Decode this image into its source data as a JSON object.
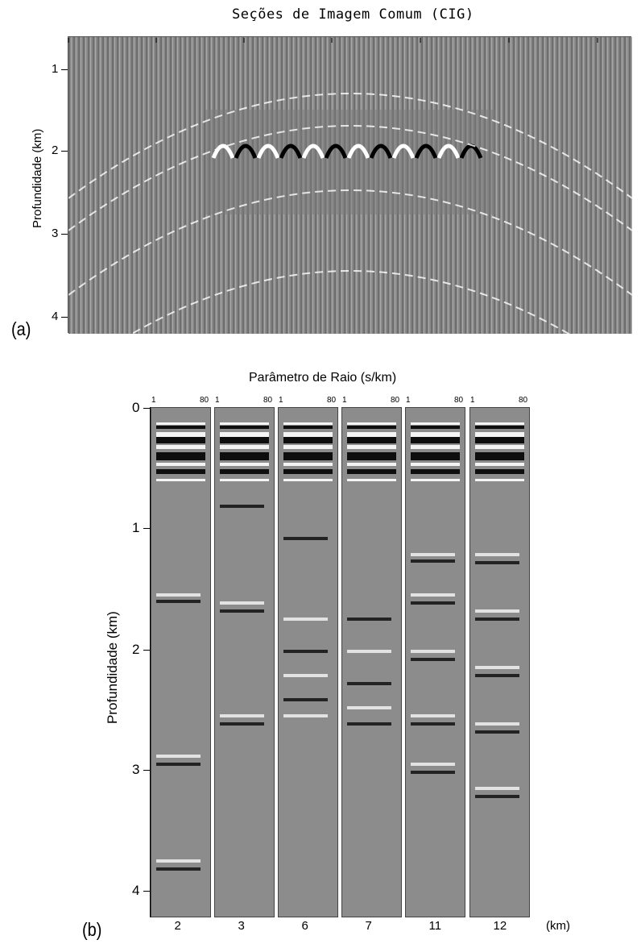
{
  "panel_a": {
    "title": "Seções de Imagem Comum (CIG)",
    "ylabel": "Profundidade (km)",
    "yticks": [
      "1",
      "2",
      "3",
      "4"
    ],
    "caption": "(a)"
  },
  "panel_b": {
    "title": "Parâmetro de Raio (s/km)",
    "ylabel": "Profundidade (km)",
    "yticks": [
      "0",
      "1",
      "2",
      "3",
      "4"
    ],
    "caption": "(b)",
    "x_unit": "(km)",
    "panels": [
      {
        "label": "2",
        "range_start": "1",
        "range_end": "80"
      },
      {
        "label": "3",
        "range_start": "1",
        "range_end": "80"
      },
      {
        "label": "6",
        "range_start": "1",
        "range_end": "80"
      },
      {
        "label": "7",
        "range_start": "1",
        "range_end": "80"
      },
      {
        "label": "11",
        "range_start": "1",
        "range_end": "80"
      },
      {
        "label": "12",
        "range_start": "1",
        "range_end": "80"
      }
    ]
  }
}
